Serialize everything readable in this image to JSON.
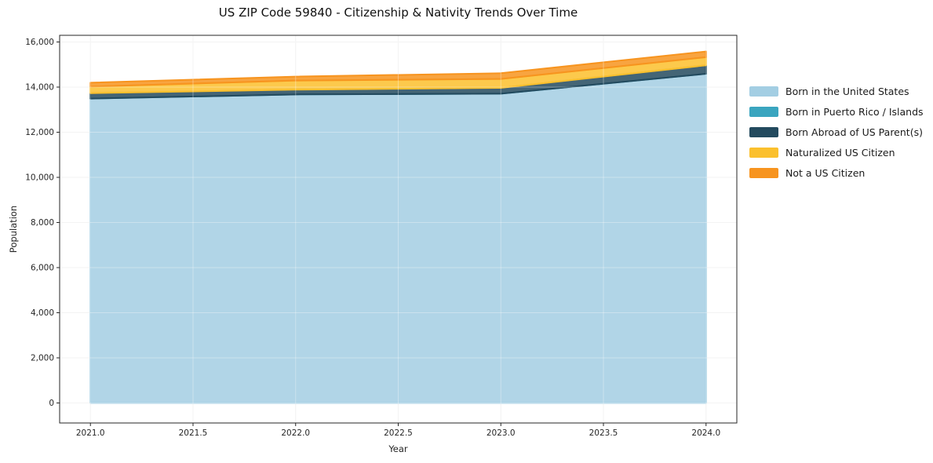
{
  "chart_data": {
    "type": "area",
    "stacked": true,
    "title": "US ZIP Code 59840 - Citizenship & Nativity Trends Over Time",
    "xlabel": "Year",
    "ylabel": "Population",
    "x": [
      2021,
      2022,
      2023,
      2024
    ],
    "xlim": [
      2020.85,
      2024.15
    ],
    "ylim": [
      -887,
      16295
    ],
    "grid": true,
    "legend_position": "right-outside",
    "xticks": {
      "values": [
        2021.0,
        2021.5,
        2022.0,
        2022.5,
        2023.0,
        2023.5,
        2024.0
      ],
      "labels": [
        "2021.0",
        "2021.5",
        "2022.0",
        "2022.5",
        "2023.0",
        "2023.5",
        "2024.0"
      ]
    },
    "yticks": {
      "values": [
        0,
        2000,
        4000,
        6000,
        8000,
        10000,
        12000,
        14000,
        16000
      ],
      "labels": [
        "0",
        "2,000",
        "4,000",
        "6,000",
        "8,000",
        "10,000",
        "12,000",
        "14,000",
        "16,000"
      ]
    },
    "series": [
      {
        "name": "Born in the United States",
        "color": "#a3cee3",
        "values": [
          13490,
          13675,
          13710,
          14590
        ]
      },
      {
        "name": "Born in Puerto Rico / Islands",
        "color": "#3aa5bf",
        "values": [
          0,
          0,
          0,
          0
        ]
      },
      {
        "name": "Born Abroad of US Parent(s)",
        "color": "#234a5e",
        "values": [
          240,
          210,
          255,
          375
        ]
      },
      {
        "name": "Naturalized US Citizen",
        "color": "#fbc02d",
        "values": [
          290,
          405,
          395,
          360
        ]
      },
      {
        "name": "Not a US Citizen",
        "color": "#f7941f",
        "values": [
          175,
          175,
          255,
          255
        ]
      }
    ],
    "style": {
      "fill_opacity": 0.85,
      "edge_width": 2,
      "grid_color": "#ededed",
      "grid_overlay_color": "rgba(255,255,255,0.35)",
      "spine_color": "#262626",
      "tick_len": 4,
      "tick_font_px": 10.5
    }
  }
}
